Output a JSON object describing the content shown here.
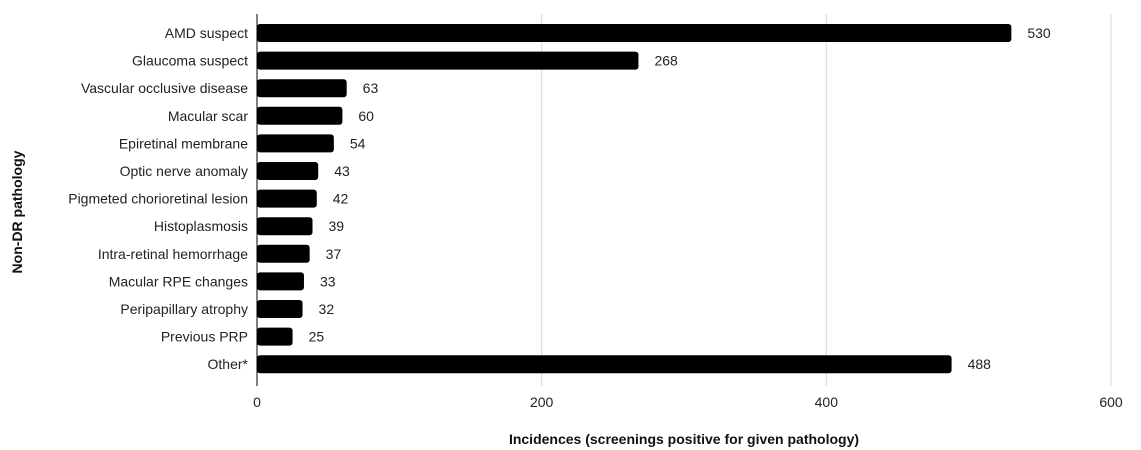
{
  "chart_data": {
    "type": "bar",
    "orientation": "horizontal",
    "categories": [
      "AMD suspect",
      "Glaucoma suspect",
      "Vascular occlusive disease",
      "Macular scar",
      "Epiretinal membrane",
      "Optic nerve anomaly",
      "Pigmeted chorioretinal lesion",
      "Histoplasmosis",
      "Intra-retinal hemorrhage",
      "Macular RPE changes",
      "Peripapillary atrophy",
      "Previous PRP",
      "Other*"
    ],
    "values": [
      530,
      268,
      63,
      60,
      54,
      43,
      42,
      39,
      37,
      33,
      32,
      25,
      488
    ],
    "xlabel": "Incidences (screenings positive for given pathology)",
    "ylabel": "Non-DR pathology",
    "xlim": [
      0,
      600
    ],
    "xticks": [
      0,
      200,
      400,
      600
    ],
    "grid": "vertical",
    "legend": "none",
    "bar_color": "#000000",
    "grid_color": "#d9d9d9"
  }
}
